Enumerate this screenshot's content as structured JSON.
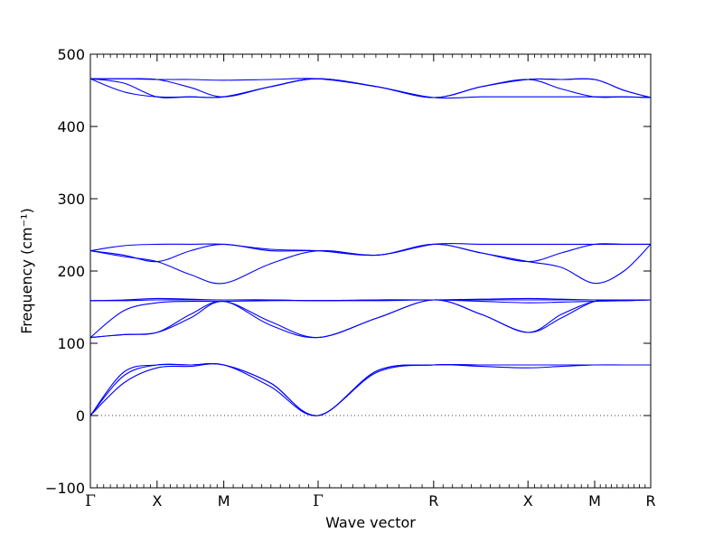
{
  "chart_data": {
    "type": "line",
    "xlabel": "Wave vector",
    "ylabel": "Frequency (cm⁻¹)",
    "ylim": [
      -100,
      500
    ],
    "yticks": [
      -100,
      0,
      100,
      200,
      300,
      400,
      500
    ],
    "kpath": [
      {
        "label": "Γ",
        "x": 0.0
      },
      {
        "label": "X",
        "x": 0.5
      },
      {
        "label": "M",
        "x": 1.0
      },
      {
        "label": "Γ",
        "x": 1.707
      },
      {
        "label": "R",
        "x": 2.573
      },
      {
        "label": "X",
        "x": 3.28
      },
      {
        "label": "M",
        "x": 3.78
      },
      {
        "label": "R",
        "x": 4.2
      }
    ],
    "zero_line": 0,
    "series_color": "#0000ff",
    "series": [
      {
        "x": [
          0.0,
          0.25,
          0.5,
          0.75,
          1.0,
          1.35,
          1.707,
          2.15,
          2.573,
          2.93,
          3.28,
          3.53,
          3.78,
          4.0,
          4.2
        ],
        "values": [
          0,
          45,
          66,
          68,
          70,
          40,
          0,
          60,
          70,
          68,
          66,
          68,
          70,
          70,
          70
        ]
      },
      {
        "x": [
          0.0,
          0.25,
          0.5,
          0.75,
          1.0,
          1.35,
          1.707,
          2.15,
          2.573,
          2.93,
          3.28,
          3.53,
          3.78,
          4.0,
          4.2
        ],
        "values": [
          0,
          55,
          70,
          70,
          70,
          45,
          0,
          62,
          70,
          70,
          70,
          70,
          70,
          70,
          70
        ]
      },
      {
        "x": [
          0.0,
          0.25,
          0.5,
          0.75,
          1.0,
          1.35,
          1.707,
          2.15,
          2.573,
          2.93,
          3.28,
          3.53,
          3.78,
          4.0,
          4.2
        ],
        "values": [
          0,
          60,
          70,
          70,
          70,
          45,
          0,
          62,
          70,
          70,
          70,
          70,
          70,
          70,
          70
        ]
      },
      {
        "x": [
          0.0,
          0.25,
          0.5,
          0.75,
          1.0,
          1.35,
          1.707,
          2.15,
          2.573,
          2.93,
          3.28,
          3.53,
          3.78,
          4.0,
          4.2
        ],
        "values": [
          108,
          112,
          115,
          135,
          158,
          125,
          108,
          135,
          160,
          140,
          115,
          135,
          158,
          159,
          160
        ]
      },
      {
        "x": [
          0.0,
          0.25,
          0.5,
          0.75,
          1.0,
          1.35,
          1.707,
          2.15,
          2.573,
          2.93,
          3.28,
          3.53,
          3.78,
          4.0,
          4.2
        ],
        "values": [
          108,
          112,
          115,
          140,
          158,
          130,
          108,
          135,
          160,
          140,
          115,
          140,
          158,
          159,
          160
        ]
      },
      {
        "x": [
          0.0,
          0.25,
          0.5,
          0.75,
          1.0,
          1.35,
          1.707,
          2.15,
          2.573,
          2.93,
          3.28,
          3.53,
          3.78,
          4.0,
          4.2
        ],
        "values": [
          108,
          145,
          156,
          158,
          158,
          159,
          159,
          159,
          160,
          158,
          156,
          157,
          158,
          159,
          160
        ]
      },
      {
        "x": [
          0.0,
          0.25,
          0.5,
          0.75,
          1.0,
          1.35,
          1.707,
          2.15,
          2.573,
          2.93,
          3.28,
          3.53,
          3.78,
          4.0,
          4.2
        ],
        "values": [
          159,
          159,
          160,
          160,
          160,
          160,
          159,
          160,
          160,
          160,
          160,
          160,
          160,
          160,
          160
        ]
      },
      {
        "x": [
          0.0,
          0.25,
          0.5,
          0.75,
          1.0,
          1.35,
          1.707,
          2.15,
          2.573,
          2.93,
          3.28,
          3.53,
          3.78,
          4.0,
          4.2
        ],
        "values": [
          159,
          160,
          162,
          161,
          160,
          160,
          159,
          160,
          160,
          161,
          162,
          161,
          160,
          160,
          160
        ]
      },
      {
        "x": [
          0.0,
          0.25,
          0.5,
          0.75,
          1.0,
          1.35,
          1.707,
          2.15,
          2.573,
          2.93,
          3.28,
          3.53,
          3.78,
          4.0,
          4.2
        ],
        "values": [
          228,
          220,
          213,
          195,
          183,
          210,
          228,
          222,
          237,
          225,
          213,
          205,
          183,
          200,
          237
        ]
      },
      {
        "x": [
          0.0,
          0.25,
          0.5,
          0.75,
          1.0,
          1.35,
          1.707,
          2.15,
          2.573,
          2.93,
          3.28,
          3.53,
          3.78,
          4.0,
          4.2
        ],
        "values": [
          228,
          222,
          213,
          228,
          237,
          228,
          228,
          222,
          237,
          225,
          213,
          225,
          237,
          237,
          237
        ]
      },
      {
        "x": [
          0.0,
          0.25,
          0.5,
          0.75,
          1.0,
          1.35,
          1.707,
          2.15,
          2.573,
          2.93,
          3.28,
          3.53,
          3.78,
          4.0,
          4.2
        ],
        "values": [
          228,
          235,
          237,
          237,
          237,
          230,
          228,
          222,
          237,
          237,
          237,
          237,
          237,
          237,
          237
        ]
      },
      {
        "x": [
          0.0,
          0.25,
          0.5,
          0.75,
          1.0,
          1.35,
          1.707,
          2.15,
          2.573,
          2.93,
          3.28,
          3.53,
          3.78,
          4.0,
          4.2
        ],
        "values": [
          466,
          448,
          441,
          441,
          441,
          455,
          466,
          455,
          440,
          455,
          465,
          452,
          441,
          441,
          440
        ]
      },
      {
        "x": [
          0.0,
          0.25,
          0.5,
          0.75,
          1.0,
          1.35,
          1.707,
          2.15,
          2.573,
          2.93,
          3.28,
          3.53,
          3.78,
          4.0,
          4.2
        ],
        "values": [
          466,
          460,
          441,
          441,
          441,
          455,
          466,
          455,
          440,
          441,
          441,
          441,
          441,
          441,
          440
        ]
      },
      {
        "x": [
          0.0,
          0.25,
          0.5,
          0.75,
          1.0,
          1.35,
          1.707,
          2.15,
          2.573,
          2.93,
          3.28,
          3.53,
          3.78,
          4.0,
          4.2
        ],
        "values": [
          466,
          466,
          465,
          454,
          441,
          455,
          466,
          455,
          440,
          455,
          465,
          465,
          465,
          450,
          440
        ]
      },
      {
        "x": [
          0.0,
          0.25,
          0.5,
          0.75,
          1.0,
          1.35,
          1.707,
          2.15,
          2.573,
          2.93,
          3.28,
          3.53,
          3.78,
          4.0,
          4.2
        ],
        "values": [
          466,
          466,
          465,
          465,
          464,
          465,
          466,
          455,
          440,
          455,
          465,
          465,
          465,
          450,
          440
        ]
      }
    ]
  }
}
